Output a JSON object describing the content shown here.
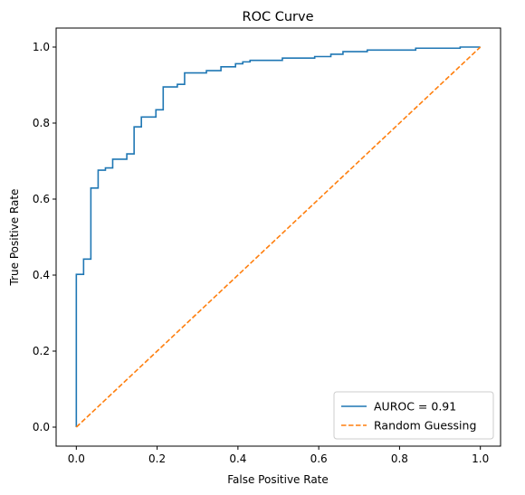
{
  "chart_data": {
    "type": "line",
    "title": "ROC Curve",
    "xlabel": "False Positive Rate",
    "ylabel": "True Positive Rate",
    "xlim": [
      -0.05,
      1.05
    ],
    "ylim": [
      -0.05,
      1.05
    ],
    "xticks": [
      0.0,
      0.2,
      0.4,
      0.6,
      0.8,
      1.0
    ],
    "yticks": [
      0.0,
      0.2,
      0.4,
      0.6,
      0.8,
      1.0
    ],
    "xtick_labels": [
      "0.0",
      "0.2",
      "0.4",
      "0.6",
      "0.8",
      "1.0"
    ],
    "ytick_labels": [
      "0.0",
      "0.2",
      "0.4",
      "0.6",
      "0.8",
      "1.0"
    ],
    "grid": false,
    "legend_position": "lower right",
    "series": [
      {
        "name": "AUROC = 0.91",
        "color": "#1f77b4",
        "style": "solid",
        "step": true,
        "x": [
          0.0,
          0.0,
          0.018,
          0.018,
          0.036,
          0.036,
          0.054,
          0.054,
          0.072,
          0.072,
          0.09,
          0.09,
          0.125,
          0.125,
          0.143,
          0.143,
          0.161,
          0.161,
          0.197,
          0.197,
          0.215,
          0.215,
          0.25,
          0.25,
          0.268,
          0.268,
          0.322,
          0.322,
          0.358,
          0.358,
          0.394,
          0.394,
          0.412,
          0.412,
          0.43,
          0.43,
          0.51,
          0.51,
          0.59,
          0.59,
          0.63,
          0.63,
          0.66,
          0.66,
          0.72,
          0.72,
          0.84,
          0.84,
          0.95,
          0.95,
          1.0
        ],
        "y": [
          0.0,
          0.402,
          0.402,
          0.442,
          0.442,
          0.629,
          0.629,
          0.676,
          0.676,
          0.682,
          0.682,
          0.705,
          0.705,
          0.719,
          0.719,
          0.79,
          0.79,
          0.816,
          0.816,
          0.835,
          0.835,
          0.895,
          0.895,
          0.902,
          0.902,
          0.932,
          0.932,
          0.938,
          0.938,
          0.948,
          0.948,
          0.956,
          0.956,
          0.961,
          0.961,
          0.965,
          0.965,
          0.971,
          0.971,
          0.975,
          0.975,
          0.981,
          0.981,
          0.988,
          0.988,
          0.992,
          0.992,
          0.997,
          0.997,
          1.0,
          1.0
        ]
      },
      {
        "name": "Random Guessing",
        "color": "#ff7f0e",
        "style": "dashed",
        "step": false,
        "x": [
          0.0,
          1.0
        ],
        "y": [
          0.0,
          1.0
        ]
      }
    ]
  }
}
